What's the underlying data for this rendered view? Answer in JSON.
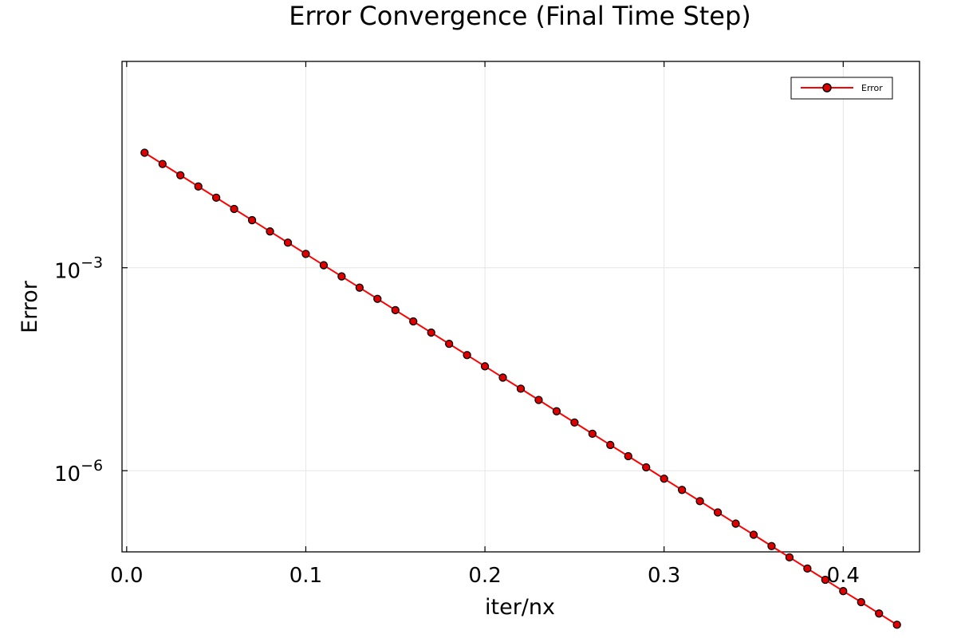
{
  "chart_data": {
    "type": "line",
    "title": "Error Convergence (Final Time Step)",
    "xlabel": "iter/nx",
    "ylabel": "Error",
    "xlim": [
      -0.0026,
      0.4426
    ],
    "ylim_log10": [
      -7.2,
      0.05
    ],
    "y_scale": "log10",
    "grid": true,
    "legend_position": "top-right",
    "x_ticks": [
      0.0,
      0.1,
      0.2,
      0.3,
      0.4
    ],
    "x_tick_labels": [
      "0.0",
      "0.1",
      "0.2",
      "0.3",
      "0.4"
    ],
    "y_ticks_log10": [
      -3,
      -6
    ],
    "y_tick_labels": [
      {
        "base": "10",
        "exp": "−3"
      },
      {
        "base": "10",
        "exp": "−6"
      }
    ],
    "series": [
      {
        "name": "Error",
        "color": "#ff0000",
        "marker_color": "#e00000",
        "x": [
          0.01,
          0.02,
          0.03,
          0.04,
          0.05,
          0.06,
          0.07,
          0.08,
          0.09,
          0.1,
          0.11,
          0.12,
          0.13,
          0.14,
          0.15,
          0.16,
          0.17,
          0.18,
          0.19,
          0.2,
          0.21,
          0.22,
          0.23,
          0.24,
          0.25,
          0.26,
          0.27,
          0.28,
          0.29,
          0.3,
          0.31,
          0.32,
          0.33,
          0.34,
          0.35,
          0.36,
          0.37,
          0.38,
          0.39,
          0.4,
          0.41,
          0.42,
          0.43
        ],
        "y": [
          0.0501,
          0.0342,
          0.0233,
          0.0159,
          0.01085,
          0.0074,
          0.00505,
          0.00344,
          0.00235,
          0.0016,
          0.00109,
          0.000745,
          0.000508,
          0.000347,
          0.000236,
          0.000161,
          0.00011,
          7.5e-05,
          5.12e-05,
          3.49e-05,
          2.38e-05,
          1.63e-05,
          1.11e-05,
          7.56e-06,
          5.16e-06,
          3.52e-06,
          2.4e-06,
          1.64e-06,
          1.12e-06,
          7.62e-07,
          5.2e-07,
          3.55e-07,
          2.42e-07,
          1.65e-07,
          1.13e-07,
          7.68e-08,
          5.24e-08,
          3.58e-08,
          2.44e-08,
          1.66e-08,
          1.14e-08,
          7.74e-09,
          5.28e-09
        ]
      }
    ]
  }
}
